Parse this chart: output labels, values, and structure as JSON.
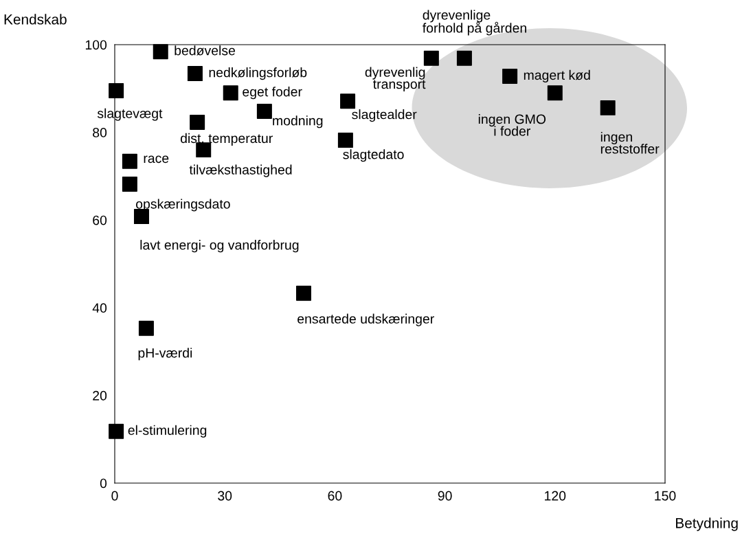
{
  "chart_data": {
    "type": "scatter",
    "xlabel": "Betydning",
    "ylabel": "Kendskab",
    "xlim": [
      0,
      150
    ],
    "ylim": [
      0,
      100
    ],
    "xticks": [
      0,
      30,
      60,
      90,
      120,
      150
    ],
    "yticks": [
      0,
      20,
      40,
      60,
      80,
      100
    ],
    "grid": false,
    "marker": "square",
    "series": [
      {
        "color": "#000000",
        "x": [
          12.5,
          0.4,
          21.9,
          31.6,
          40.8,
          22.5,
          63.5,
          62.9,
          86.3,
          95.3,
          107.7,
          120.0,
          134.4,
          4.1,
          24.2,
          4.1,
          7.3,
          51.5,
          8.6,
          0.4
        ],
        "values": [
          98.4,
          89.5,
          93.4,
          89.0,
          84.8,
          82.3,
          87.1,
          78.2,
          96.9,
          96.9,
          92.8,
          89.0,
          85.6,
          73.4,
          76.0,
          68.2,
          60.8,
          43.3,
          35.3,
          11.8
        ]
      }
    ],
    "annotations": [
      {
        "text": "bedøvelse",
        "x": 12.5,
        "y": 98.4
      },
      {
        "text": "slagtevægt",
        "x": 0.4,
        "y": 89.5
      },
      {
        "text": "nedkølingsforløb",
        "x": 21.9,
        "y": 93.4
      },
      {
        "text": "eget foder",
        "x": 31.6,
        "y": 89.0
      },
      {
        "text": "modning",
        "x": 40.8,
        "y": 84.8
      },
      {
        "text": "dist. temperatur",
        "x": 22.5,
        "y": 82.3
      },
      {
        "text": "slagtealder",
        "x": 63.5,
        "y": 87.1
      },
      {
        "text": "slagtedato",
        "x": 62.9,
        "y": 78.2
      },
      {
        "text": "dyrevenlig\ntransport",
        "x": 86.3,
        "y": 96.9
      },
      {
        "text": "dyrevenlige\nforhold på gården",
        "x": 95.3,
        "y": 96.9
      },
      {
        "text": "magert kød",
        "x": 107.7,
        "y": 92.8
      },
      {
        "text": "ingen GMO\ni foder",
        "x": 120.0,
        "y": 89.0
      },
      {
        "text": "ingen\nreststoffer",
        "x": 134.4,
        "y": 85.6
      },
      {
        "text": "race",
        "x": 4.1,
        "y": 73.4
      },
      {
        "text": "tilvæksthastighed",
        "x": 24.2,
        "y": 76.0
      },
      {
        "text": "opskæringsdato",
        "x": 4.1,
        "y": 68.2
      },
      {
        "text": "lavt energi- og vandforbrug",
        "x": 7.3,
        "y": 60.8
      },
      {
        "text": "ensartede udskæringer",
        "x": 51.5,
        "y": 43.3
      },
      {
        "text": "pH-værdi",
        "x": 8.6,
        "y": 35.3
      },
      {
        "text": "el-stimulering",
        "x": 0.4,
        "y": 11.8
      }
    ]
  }
}
